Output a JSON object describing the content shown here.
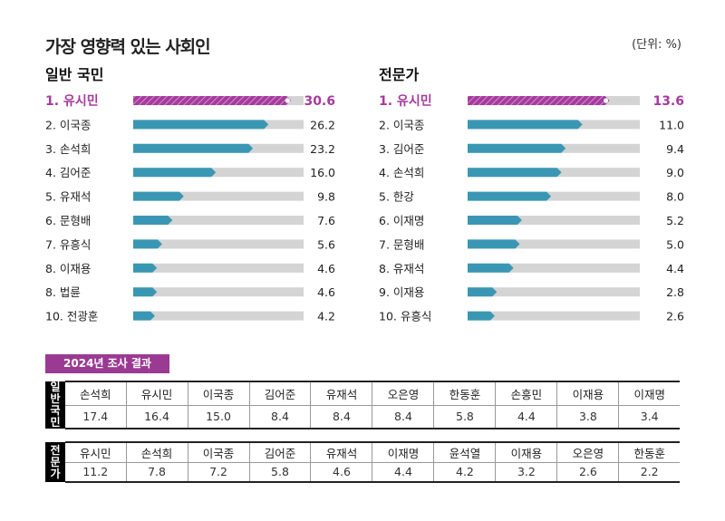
{
  "title": "가장 영향력 있는 사회인",
  "unit": "(단위: %)",
  "colors": {
    "highlight": "#a63a9e",
    "bar": "#3a97b3",
    "track": "#d4d4d4"
  },
  "chart_data": [
    {
      "type": "bar",
      "title": "일반 국민",
      "categories": [
        "1. 유시민",
        "2. 이국종",
        "3. 손석희",
        "4. 김어준",
        "5. 유재석",
        "6. 문형배",
        "7. 유흥식",
        "8. 이재용",
        "8. 법륜",
        "10. 전광훈"
      ],
      "values": [
        30.6,
        26.2,
        23.2,
        16.0,
        9.8,
        7.6,
        5.6,
        4.6,
        4.6,
        4.2
      ],
      "labels": [
        "30.6",
        "26.2",
        "23.2",
        "16.0",
        "9.8",
        "7.6",
        "5.6",
        "4.6",
        "4.6",
        "4.2"
      ],
      "xlim": [
        0,
        33
      ]
    },
    {
      "type": "bar",
      "title": "전문가",
      "categories": [
        "1. 유시민",
        "2. 이국종",
        "3. 김어준",
        "4. 손석희",
        "5. 한강",
        "6. 이재명",
        "7. 문형배",
        "8. 유재석",
        "9. 이재용",
        "10. 유흥식"
      ],
      "values": [
        13.6,
        11.0,
        9.4,
        9.0,
        8.0,
        5.2,
        5.0,
        4.4,
        2.8,
        2.6
      ],
      "labels": [
        "13.6",
        "11.0",
        "9.4",
        "9.0",
        "8.0",
        "5.2",
        "5.0",
        "4.4",
        "2.8",
        "2.6"
      ],
      "xlim": [
        0,
        16.5
      ]
    }
  ],
  "survey": {
    "label": "2024년 조사 결과",
    "public": {
      "side": [
        "일",
        "반",
        "국",
        "민"
      ],
      "names": [
        "손석희",
        "유시민",
        "이국종",
        "김어준",
        "유재석",
        "오은영",
        "한동훈",
        "손흥민",
        "이재용",
        "이재명"
      ],
      "values": [
        "17.4",
        "16.4",
        "15.0",
        "8.4",
        "8.4",
        "8.4",
        "5.8",
        "4.4",
        "3.8",
        "3.4"
      ]
    },
    "expert": {
      "side": [
        "전",
        "문",
        "가"
      ],
      "names": [
        "유시민",
        "손석희",
        "이국종",
        "김어준",
        "유재석",
        "이재명",
        "윤석열",
        "이재용",
        "오은영",
        "한동훈"
      ],
      "values": [
        "11.2",
        "7.8",
        "7.2",
        "5.8",
        "4.6",
        "4.4",
        "4.2",
        "3.2",
        "2.6",
        "2.2"
      ]
    }
  }
}
